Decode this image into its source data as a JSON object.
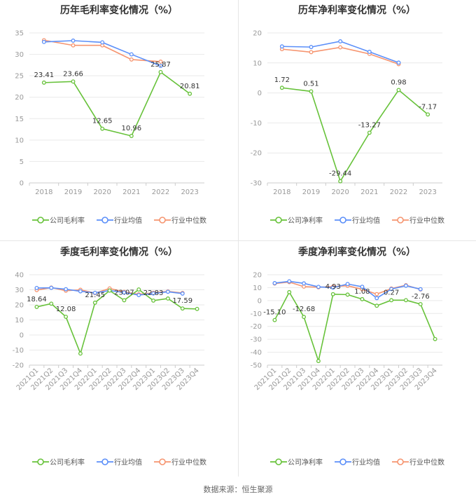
{
  "source_text": "数据来源：恒生聚源",
  "colors": {
    "company": "#67c23a",
    "avg": "#5b8ff9",
    "median": "#f6946f",
    "axis": "#999999",
    "grid": "#e9e9e9"
  },
  "legend_labels": {
    "gross": [
      "公司毛利率",
      "行业均值",
      "行业中位数"
    ],
    "net": [
      "公司净利率",
      "行业均值",
      "行业中位数"
    ]
  },
  "chart_data": [
    {
      "type": "line",
      "title": "历年毛利率变化情况（%）",
      "categories": [
        "2018",
        "2019",
        "2020",
        "2021",
        "2022",
        "2023"
      ],
      "ylim": [
        0,
        35
      ],
      "yticks": [
        0,
        5,
        10,
        15,
        20,
        25,
        30,
        35
      ],
      "series": [
        {
          "name": "公司毛利率",
          "values": [
            23.41,
            23.66,
            12.65,
            10.96,
            25.87,
            20.81
          ],
          "labels": [
            "23.41",
            "23.66",
            "12.65",
            "10.96",
            "25.87",
            "20.81"
          ]
        },
        {
          "name": "行业均值",
          "values": [
            32.9,
            33.2,
            32.8,
            30.0,
            27.3,
            null
          ]
        },
        {
          "name": "行业中位数",
          "values": [
            33.3,
            32.1,
            32.1,
            28.8,
            28.3,
            null
          ]
        }
      ]
    },
    {
      "type": "line",
      "title": "历年净利率变化情况（%）",
      "categories": [
        "2018",
        "2019",
        "2020",
        "2021",
        "2022",
        "2023"
      ],
      "ylim": [
        -30,
        20
      ],
      "yticks": [
        -30,
        -20,
        -10,
        0,
        10,
        20
      ],
      "series": [
        {
          "name": "公司净利率",
          "values": [
            1.72,
            0.51,
            -29.44,
            -13.27,
            0.98,
            -7.17
          ],
          "labels": [
            "1.72",
            "0.51",
            "-29.44",
            "-13.27",
            "0.98",
            "-7.17"
          ]
        },
        {
          "name": "行业均值",
          "values": [
            15.5,
            15.3,
            17.2,
            13.7,
            10.1,
            null
          ]
        },
        {
          "name": "行业中位数",
          "values": [
            14.6,
            13.6,
            15.2,
            13.0,
            9.6,
            null
          ]
        }
      ]
    },
    {
      "type": "line",
      "title": "季度毛利率变化情况（%）",
      "categories": [
        "2021Q1",
        "2021Q2",
        "2021Q3",
        "2021Q4",
        "2022Q1",
        "2022Q2",
        "2022Q3",
        "2022Q4",
        "2023Q1",
        "2023Q2",
        "2023Q3",
        "2023Q4"
      ],
      "ylim": [
        -20,
        40
      ],
      "yticks": [
        -20,
        -10,
        0,
        10,
        20,
        30,
        40
      ],
      "series": [
        {
          "name": "公司毛利率",
          "values": [
            18.64,
            20.8,
            12.08,
            -12.3,
            21.45,
            29.5,
            23.07,
            30.2,
            22.83,
            24.2,
            17.59,
            17.3
          ],
          "labels": [
            "18.64",
            "",
            "12.08",
            "",
            "21.45",
            "",
            "23.07",
            "",
            "22.83",
            "",
            "17.59",
            ""
          ]
        },
        {
          "name": "行业均值",
          "values": [
            31.2,
            31.3,
            30.4,
            29.0,
            28.0,
            29.5,
            28.2,
            26.5,
            27.6,
            28.7,
            27.5,
            null
          ]
        },
        {
          "name": "行业中位数",
          "values": [
            29.8,
            31.5,
            29.4,
            30.0,
            27.8,
            30.9,
            28.6,
            27.0,
            28.0,
            28.9,
            27.9,
            null
          ]
        }
      ]
    },
    {
      "type": "line",
      "title": "季度净利率变化情况（%）",
      "categories": [
        "2021Q1",
        "2021Q2",
        "2021Q3",
        "2021Q4",
        "2022Q1",
        "2022Q2",
        "2022Q3",
        "2022Q4",
        "2023Q1",
        "2023Q2",
        "2023Q3",
        "2023Q4"
      ],
      "ylim": [
        -50,
        20
      ],
      "yticks": [
        -50,
        -40,
        -30,
        -20,
        -10,
        0,
        10,
        20
      ],
      "series": [
        {
          "name": "公司净利率",
          "values": [
            -15.1,
            6.5,
            -12.68,
            -46.8,
            4.93,
            4.6,
            1.08,
            -4.0,
            0.27,
            0.3,
            -2.76,
            -29.8
          ],
          "labels": [
            "-15.10",
            "",
            "-12.68",
            "",
            "4.93",
            "",
            "1.08",
            "",
            "0.27",
            "",
            "-2.76",
            ""
          ]
        },
        {
          "name": "行业均值",
          "values": [
            13.5,
            14.9,
            13.3,
            10.6,
            10.0,
            12.8,
            10.7,
            1.9,
            8.9,
            11.5,
            8.8,
            null
          ]
        },
        {
          "name": "行业中位数",
          "values": [
            13.2,
            14.3,
            10.8,
            10.3,
            10.8,
            11.5,
            8.7,
            5.0,
            9.3,
            11.9,
            8.6,
            null
          ]
        }
      ]
    }
  ]
}
